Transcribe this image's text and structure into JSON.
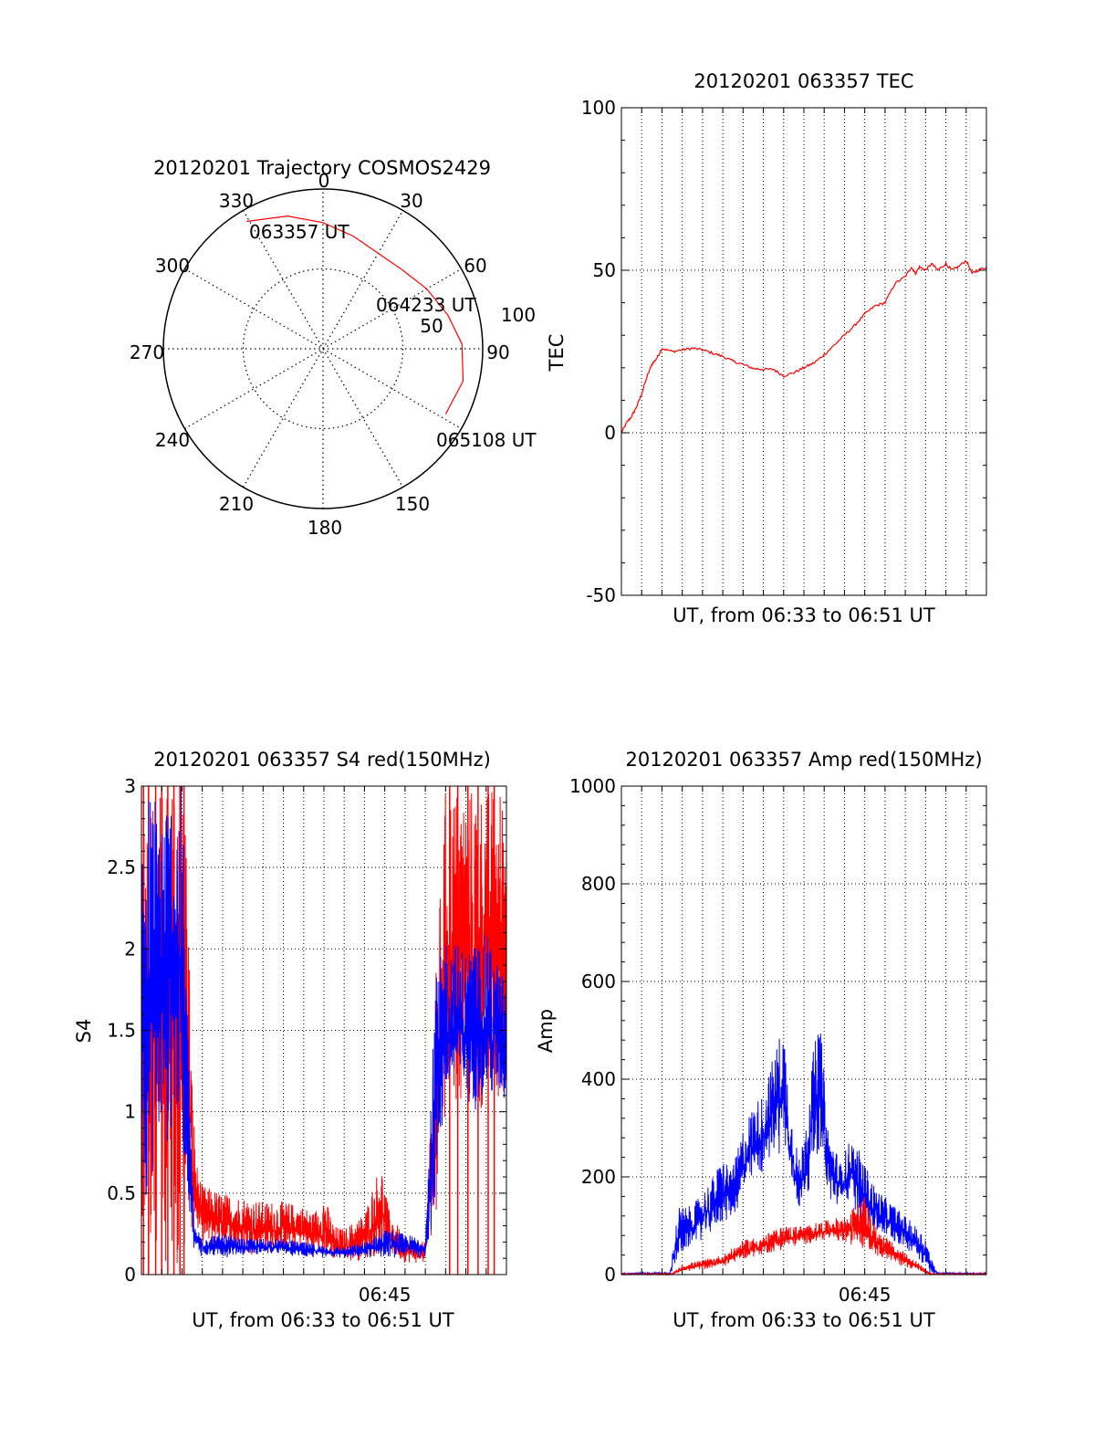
{
  "colors": {
    "red": "#ff0000",
    "blue": "#0000ff",
    "axis": "#000000",
    "grid": "#000000"
  },
  "chart_data": [
    {
      "id": "trajectory",
      "type": "polar",
      "title": "20120201 Trajectory COSMOS2429",
      "angle_labels": [
        "0",
        "30",
        "60",
        "90",
        "150",
        "180",
        "210",
        "240",
        "270",
        "300",
        "330"
      ],
      "radius_labels": [
        "50",
        "100"
      ],
      "rmax": 100,
      "track": {
        "points": [
          [
            329,
            93
          ],
          [
            345,
            86
          ],
          [
            0,
            79
          ],
          [
            15,
            73
          ],
          [
            30,
            69
          ],
          [
            45,
            70
          ],
          [
            60,
            75
          ],
          [
            75,
            81
          ],
          [
            88,
            87
          ],
          [
            103,
            90
          ],
          [
            118,
            87
          ]
        ],
        "labels": [
          "063357 UT",
          "064233 UT",
          "065108 UT"
        ]
      },
      "colors": [
        "#ff0000"
      ]
    },
    {
      "id": "tec",
      "type": "line",
      "title": "20120201 063357 TEC",
      "ylabel": "TEC",
      "xlabel": "UT, from 06:33 to 06:51 UT",
      "xlim": [
        0,
        18
      ],
      "ylim": [
        -50,
        100
      ],
      "yticks": [
        "-50",
        "0",
        "50",
        "100"
      ],
      "x_tick_labels": [],
      "series": [
        {
          "color": "#ff0000",
          "x": [
            0,
            0.25,
            0.5,
            0.75,
            1.0,
            1.25,
            1.5,
            1.75,
            2.0,
            2.5,
            3.0,
            3.5,
            4.0,
            4.5,
            5.0,
            5.5,
            6.0,
            6.5,
            7.0,
            7.5,
            8.0,
            8.5,
            9.0,
            9.5,
            10.0,
            10.5,
            11.0,
            11.5,
            12.0,
            12.5,
            13.0,
            13.5,
            14.0,
            14.3,
            14.5,
            14.7,
            15.0,
            15.3,
            15.6,
            16.0,
            16.3,
            16.6,
            17.0,
            17.3,
            17.6,
            18.0
          ],
          "y": [
            0,
            3,
            5,
            8,
            12,
            17,
            21,
            23,
            26,
            25,
            25.5,
            26,
            25.5,
            24.5,
            23.5,
            22,
            21,
            19.8,
            19.5,
            19.5,
            17.5,
            18.5,
            20,
            21.5,
            24,
            27,
            30,
            33,
            36.5,
            39,
            40,
            46,
            48,
            51,
            49,
            51,
            50,
            52,
            50,
            52,
            50,
            51,
            53,
            49,
            50,
            51
          ]
        }
      ]
    },
    {
      "id": "s4",
      "type": "line",
      "title": "20120201 063357 S4 red(150MHz)",
      "ylabel": "S4",
      "xlabel": "UT, from 06:33 to 06:51 UT",
      "xlim": [
        0,
        18
      ],
      "ylim": [
        0,
        3
      ],
      "yticks": [
        "0",
        "0.5",
        "1",
        "1.5",
        "2",
        "2.5",
        "3"
      ],
      "x_tick_labels": [
        {
          "x": 12,
          "label": "06:45"
        }
      ],
      "series": [
        {
          "color": "#ff0000",
          "envelope": [
            [
              0.0,
              0,
              3.0
            ],
            [
              0.6,
              0,
              3.0
            ],
            [
              1.0,
              0,
              3.0
            ],
            [
              1.4,
              0,
              3.0
            ],
            [
              1.8,
              0,
              3.0
            ],
            [
              2.2,
              0,
              3.0
            ],
            [
              2.5,
              0.25,
              1.2
            ],
            [
              2.7,
              0.25,
              0.7
            ],
            [
              3.0,
              0.15,
              0.55
            ],
            [
              4.0,
              0.15,
              0.5
            ],
            [
              5.0,
              0.12,
              0.48
            ],
            [
              6.0,
              0.12,
              0.45
            ],
            [
              7.0,
              0.12,
              0.45
            ],
            [
              8.0,
              0.15,
              0.42
            ],
            [
              8.5,
              0.1,
              0.38
            ],
            [
              9.0,
              0.08,
              0.5
            ],
            [
              9.5,
              0.08,
              0.3
            ],
            [
              10.0,
              0.08,
              0.28
            ],
            [
              11.0,
              0.08,
              0.38
            ],
            [
              11.8,
              0.1,
              0.7
            ],
            [
              12.2,
              0.1,
              0.4
            ],
            [
              13.0,
              0.07,
              0.22
            ],
            [
              14.0,
              0.06,
              0.2
            ],
            [
              14.5,
              0.3,
              1.8
            ],
            [
              15.0,
              1.0,
              3.0
            ],
            [
              16.0,
              1.0,
              3.0
            ],
            [
              17.0,
              1.0,
              3.0
            ],
            [
              18.0,
              1.0,
              3.0
            ]
          ],
          "spikes": [
            0.1,
            0.35,
            0.7,
            1.0,
            1.3,
            1.6,
            1.9,
            2.1,
            15.2,
            15.6,
            16.1,
            16.6,
            17.1,
            17.4
          ]
        },
        {
          "color": "#0000ff",
          "envelope": [
            [
              0.0,
              0.3,
              3.0
            ],
            [
              0.5,
              0.5,
              3.0
            ],
            [
              1.0,
              0.6,
              3.0
            ],
            [
              1.5,
              0.8,
              3.0
            ],
            [
              2.0,
              0.7,
              3.0
            ],
            [
              2.3,
              0.4,
              1.5
            ],
            [
              2.6,
              0.15,
              0.3
            ],
            [
              3.0,
              0.1,
              0.25
            ],
            [
              4.0,
              0.1,
              0.25
            ],
            [
              5.0,
              0.12,
              0.22
            ],
            [
              6.0,
              0.12,
              0.22
            ],
            [
              7.0,
              0.12,
              0.22
            ],
            [
              8.0,
              0.1,
              0.2
            ],
            [
              9.0,
              0.1,
              0.18
            ],
            [
              10.0,
              0.1,
              0.17
            ],
            [
              11.0,
              0.1,
              0.2
            ],
            [
              12.0,
              0.1,
              0.28
            ],
            [
              13.0,
              0.1,
              0.25
            ],
            [
              14.0,
              0.1,
              0.22
            ],
            [
              14.5,
              0.3,
              1.8
            ],
            [
              15.0,
              1.0,
              2.1
            ],
            [
              16.0,
              1.0,
              2.0
            ],
            [
              17.0,
              1.0,
              2.1
            ],
            [
              18.0,
              1.0,
              1.8
            ]
          ],
          "spikes": []
        }
      ]
    },
    {
      "id": "amp",
      "type": "line",
      "title": "20120201 063357 Amp red(150MHz)",
      "ylabel": "Amp",
      "xlabel": "UT, from 06:33 to 06:51 UT",
      "xlim": [
        0,
        18
      ],
      "ylim": [
        0,
        1000
      ],
      "yticks": [
        "0",
        "200",
        "400",
        "600",
        "800",
        "1000"
      ],
      "x_tick_labels": [
        {
          "x": 12,
          "label": "06:45"
        }
      ],
      "series": [
        {
          "color": "#0000ff",
          "envelope": [
            [
              0.0,
              0,
              3
            ],
            [
              2.4,
              0,
              5
            ],
            [
              2.8,
              20,
              140
            ],
            [
              3.5,
              60,
              140
            ],
            [
              4.5,
              80,
              200
            ],
            [
              5.0,
              100,
              240
            ],
            [
              5.5,
              110,
              220
            ],
            [
              6.0,
              150,
              300
            ],
            [
              6.5,
              180,
              350
            ],
            [
              7.0,
              200,
              370
            ],
            [
              7.5,
              240,
              450
            ],
            [
              8.0,
              250,
              520
            ],
            [
              8.3,
              180,
              350
            ],
            [
              8.8,
              120,
              230
            ],
            [
              9.5,
              200,
              470
            ],
            [
              9.8,
              250,
              520
            ],
            [
              10.2,
              140,
              300
            ],
            [
              10.8,
              130,
              230
            ],
            [
              11.3,
              150,
              280
            ],
            [
              11.8,
              100,
              250
            ],
            [
              12.5,
              80,
              180
            ],
            [
              13.5,
              60,
              140
            ],
            [
              14.5,
              40,
              100
            ],
            [
              15.0,
              10,
              80
            ],
            [
              15.3,
              0,
              30
            ],
            [
              15.6,
              0,
              5
            ],
            [
              18.0,
              0,
              3
            ]
          ],
          "spikes": []
        },
        {
          "color": "#ff0000",
          "envelope": [
            [
              0.0,
              0,
              2
            ],
            [
              2.5,
              0,
              2
            ],
            [
              3.0,
              5,
              20
            ],
            [
              4.0,
              10,
              30
            ],
            [
              5.0,
              15,
              40
            ],
            [
              6.0,
              30,
              70
            ],
            [
              7.0,
              40,
              80
            ],
            [
              8.0,
              50,
              100
            ],
            [
              9.0,
              60,
              100
            ],
            [
              10.0,
              70,
              110
            ],
            [
              11.0,
              60,
              120
            ],
            [
              11.5,
              60,
              140
            ],
            [
              12.0,
              50,
              160
            ],
            [
              12.5,
              40,
              100
            ],
            [
              13.5,
              20,
              60
            ],
            [
              14.5,
              10,
              30
            ],
            [
              15.0,
              0,
              10
            ],
            [
              15.3,
              0,
              2
            ],
            [
              18.0,
              0,
              2
            ]
          ],
          "spikes": []
        }
      ]
    }
  ]
}
